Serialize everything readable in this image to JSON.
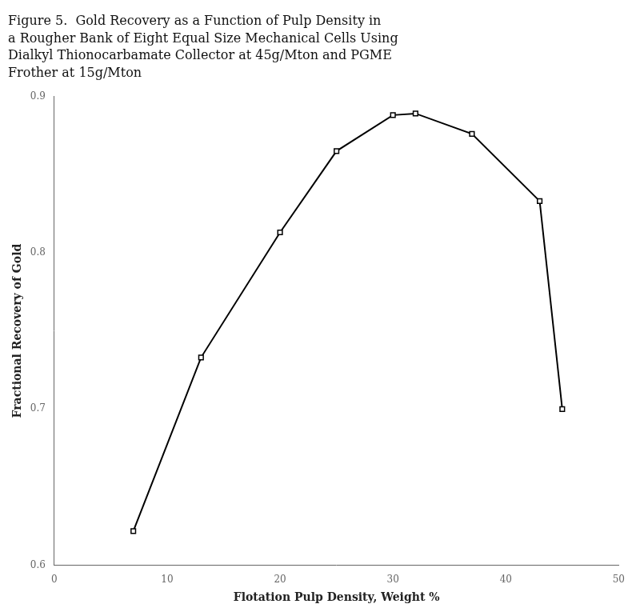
{
  "chart_data": {
    "type": "line",
    "title": "Figure 5.  Gold Recovery as a Function of Pulp Density in\na Rougher Bank of Eight Equal Size Mechanical Cells Using\nDialkyl Thionocarbamate Collector at 45g/Mton and PGME\nFrother at 15g/Mton",
    "x_label": "Flotation Pulp Density, Weight %",
    "y_label": "Fractional Recovery of Gold",
    "x": [
      7,
      13,
      20,
      25,
      30,
      32,
      37,
      43,
      45
    ],
    "values": [
      0.622,
      0.733,
      0.813,
      0.865,
      0.888,
      0.889,
      0.876,
      0.833,
      0.7
    ],
    "color": "#000000",
    "marker": "square",
    "line_style": "solid",
    "xlim": [
      0,
      50
    ],
    "xticks": [
      0,
      10,
      20,
      30,
      40,
      50
    ],
    "ylim": [
      0.6,
      0.9
    ],
    "yticks": [
      0.6,
      0.7,
      0.8,
      0.9
    ],
    "grid": false
  }
}
